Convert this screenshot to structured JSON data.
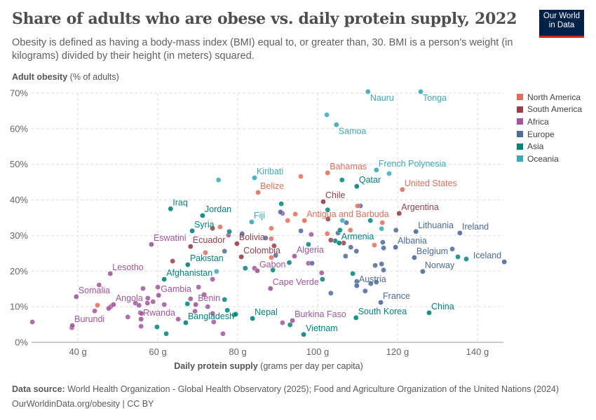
{
  "title": "Share of adults who are obese vs. daily protein supply, 2022",
  "subtitle": "Obesity is defined as having a body-mass index (BMI) equal to, or greater than, 30. BMI is a person's weight (in kilograms) divided by their height (in meters) squared.",
  "logo": {
    "line1": "Our World",
    "line2": "in Data",
    "bg": "#002147",
    "accent": "#ce261e"
  },
  "footer": {
    "source_label": "Data source:",
    "source": "World Health Organization - Global Health Observatory (2025); Food and Agriculture Organization of the United Nations (2024)",
    "url": "OurWorldinData.org/obesity | CC BY"
  },
  "chart_data": {
    "type": "scatter",
    "title": "Share of adults who are obese vs. daily protein supply, 2022",
    "xlabel": "Daily protein supply",
    "xlabel_unit": "(grams per day per capita)",
    "ylabel": "Adult obesity",
    "ylabel_unit": "(% of adults)",
    "xlim": [
      28.4,
      146.5
    ],
    "ylim": [
      0,
      70
    ],
    "xticks": [
      {
        "v": 40,
        "label": "40 g"
      },
      {
        "v": 60,
        "label": "60 g"
      },
      {
        "v": 80,
        "label": "80 g"
      },
      {
        "v": 100,
        "label": "100 g"
      },
      {
        "v": 120,
        "label": "120 g"
      },
      {
        "v": 140,
        "label": "140 g"
      }
    ],
    "yticks": [
      {
        "v": 0,
        "label": "0%"
      },
      {
        "v": 10,
        "label": "10%"
      },
      {
        "v": 20,
        "label": "20%"
      },
      {
        "v": 30,
        "label": "30%"
      },
      {
        "v": 40,
        "label": "40%"
      },
      {
        "v": 50,
        "label": "50%"
      },
      {
        "v": 60,
        "label": "60%"
      },
      {
        "v": 70,
        "label": "70%"
      }
    ],
    "grid": true,
    "legend_position": "right",
    "regions": [
      {
        "name": "North America",
        "color": "#e56e5a"
      },
      {
        "name": "South America",
        "color": "#9a3e4a"
      },
      {
        "name": "Africa",
        "color": "#a2559c"
      },
      {
        "name": "Europe",
        "color": "#4c6a9c"
      },
      {
        "name": "Asia",
        "color": "#00847e"
      },
      {
        "name": "Oceania",
        "color": "#38aabc"
      }
    ],
    "labeled_points": [
      {
        "name": "Nauru",
        "region": "Oceania",
        "x": 112.6,
        "y": 70.4
      },
      {
        "name": "Tonga",
        "region": "Oceania",
        "x": 125.8,
        "y": 70.4
      },
      {
        "name": "Samoa",
        "region": "Oceania",
        "x": 104.7,
        "y": 61.1
      },
      {
        "name": "Kiribati",
        "region": "Oceania",
        "x": 84.2,
        "y": 46.2
      },
      {
        "name": "French Polynesia",
        "region": "Oceania",
        "x": 114.7,
        "y": 48.4
      },
      {
        "name": "Bahamas",
        "region": "North America",
        "x": 102.5,
        "y": 47.6
      },
      {
        "name": "Qatar",
        "region": "Asia",
        "x": 109.8,
        "y": 43.8
      },
      {
        "name": "United States",
        "region": "North America",
        "x": 121.2,
        "y": 42.9
      },
      {
        "name": "Belize",
        "region": "North America",
        "x": 85.1,
        "y": 42.1
      },
      {
        "name": "Chile",
        "region": "South America",
        "x": 101.4,
        "y": 39.5
      },
      {
        "name": "Argentina",
        "region": "South America",
        "x": 120.4,
        "y": 36.2
      },
      {
        "name": "Antigua and Barbuda",
        "region": "North America",
        "x": 96.7,
        "y": 34.2
      },
      {
        "name": "Lithuania",
        "region": "Europe",
        "x": 124.6,
        "y": 31.1
      },
      {
        "name": "Ireland",
        "region": "Europe",
        "x": 135.6,
        "y": 30.7
      },
      {
        "name": "Iceland",
        "region": "Europe",
        "x": 146.7,
        "y": 22.6
      },
      {
        "name": "Albania",
        "region": "Europe",
        "x": 119.5,
        "y": 26.7
      },
      {
        "name": "Belgium",
        "region": "Europe",
        "x": 124.2,
        "y": 23.8
      },
      {
        "name": "Norway",
        "region": "Europe",
        "x": 126.3,
        "y": 19.9
      },
      {
        "name": "Austria",
        "region": "Europe",
        "x": 109.8,
        "y": 15.9
      },
      {
        "name": "France",
        "region": "Europe",
        "x": 115.8,
        "y": 11.2
      },
      {
        "name": "China",
        "region": "Asia",
        "x": 127.9,
        "y": 8.3
      },
      {
        "name": "South Korea",
        "region": "Asia",
        "x": 109.6,
        "y": 6.9
      },
      {
        "name": "Vietnam",
        "region": "Asia",
        "x": 96.5,
        "y": 2.2
      },
      {
        "name": "Armenia",
        "region": "Asia",
        "x": 105.4,
        "y": 27.9
      },
      {
        "name": "Algeria",
        "region": "Africa",
        "x": 94.2,
        "y": 24.2
      },
      {
        "name": "Gabon",
        "region": "Africa",
        "x": 84.9,
        "y": 20.1
      },
      {
        "name": "Cape Verde",
        "region": "Africa",
        "x": 88.2,
        "y": 15.1
      },
      {
        "name": "Burkina Faso",
        "region": "Africa",
        "x": 93.7,
        "y": 6.1
      },
      {
        "name": "Nepal",
        "region": "Asia",
        "x": 83.7,
        "y": 6.7
      },
      {
        "name": "Bangladesh",
        "region": "Asia",
        "x": 67.0,
        "y": 5.5
      },
      {
        "name": "Benin",
        "region": "Africa",
        "x": 69.5,
        "y": 10.6
      },
      {
        "name": "Rwanda",
        "region": "Africa",
        "x": 55.8,
        "y": 6.5
      },
      {
        "name": "Burundi",
        "region": "Africa",
        "x": 38.6,
        "y": 4.7
      },
      {
        "name": "Somalia",
        "region": "Africa",
        "x": 39.6,
        "y": 12.8
      },
      {
        "name": "Angola",
        "region": "Africa",
        "x": 48.9,
        "y": 10.6
      },
      {
        "name": "Gambia",
        "region": "Africa",
        "x": 60.2,
        "y": 13.2
      },
      {
        "name": "Lesotho",
        "region": "Africa",
        "x": 48.1,
        "y": 19.3
      },
      {
        "name": "Afghanistan",
        "region": "Asia",
        "x": 61.6,
        "y": 17.7
      },
      {
        "name": "Pakistan",
        "region": "Asia",
        "x": 67.5,
        "y": 21.8
      },
      {
        "name": "Eswatini",
        "region": "Africa",
        "x": 58.4,
        "y": 27.5
      },
      {
        "name": "Ecuador",
        "region": "South America",
        "x": 68.2,
        "y": 26.9
      },
      {
        "name": "Syria",
        "region": "Asia",
        "x": 68.6,
        "y": 31.3
      },
      {
        "name": "Jordan",
        "region": "Asia",
        "x": 71.2,
        "y": 35.6
      },
      {
        "name": "Iraq",
        "region": "Asia",
        "x": 63.2,
        "y": 37.5
      },
      {
        "name": "Fiji",
        "region": "Oceania",
        "x": 83.5,
        "y": 33.8
      },
      {
        "name": "Bolivia",
        "region": "South America",
        "x": 79.8,
        "y": 27.7
      },
      {
        "name": "Colombia",
        "region": "South America",
        "x": 80.9,
        "y": 24.0
      }
    ],
    "other_points": [
      {
        "region": "Africa",
        "x": 28.6,
        "y": 5.7
      },
      {
        "region": "Africa",
        "x": 38.5,
        "y": 4.1
      },
      {
        "region": "Africa",
        "x": 44.2,
        "y": 8.8
      },
      {
        "region": "Africa",
        "x": 45.3,
        "y": 16.1
      },
      {
        "region": "Africa",
        "x": 48.2,
        "y": 10.0
      },
      {
        "region": "Africa",
        "x": 47.7,
        "y": 9.5
      },
      {
        "region": "Africa",
        "x": 52.5,
        "y": 7.1
      },
      {
        "region": "Africa",
        "x": 54.4,
        "y": 11.0
      },
      {
        "region": "Africa",
        "x": 55.3,
        "y": 10.4
      },
      {
        "region": "Africa",
        "x": 55.6,
        "y": 8.3
      },
      {
        "region": "Africa",
        "x": 55.9,
        "y": 8.1
      },
      {
        "region": "Africa",
        "x": 55.8,
        "y": 4.5
      },
      {
        "region": "Africa",
        "x": 56.3,
        "y": 15.1
      },
      {
        "region": "Africa",
        "x": 57.4,
        "y": 11.0
      },
      {
        "region": "Africa",
        "x": 57.5,
        "y": 12.4
      },
      {
        "region": "Africa",
        "x": 58.8,
        "y": 11.4
      },
      {
        "region": "Africa",
        "x": 60.0,
        "y": 15.5
      },
      {
        "region": "Africa",
        "x": 61.6,
        "y": 10.6
      },
      {
        "region": "Africa",
        "x": 65.1,
        "y": 6.5
      },
      {
        "region": "Africa",
        "x": 68.2,
        "y": 12.2
      },
      {
        "region": "Africa",
        "x": 69.3,
        "y": 8.7
      },
      {
        "region": "Africa",
        "x": 70.2,
        "y": 15.5
      },
      {
        "region": "Africa",
        "x": 71.6,
        "y": 13.4
      },
      {
        "region": "Africa",
        "x": 72.5,
        "y": 10.0
      },
      {
        "region": "Africa",
        "x": 73.7,
        "y": 8.1
      },
      {
        "region": "Africa",
        "x": 73.7,
        "y": 17.7
      },
      {
        "region": "Africa",
        "x": 74.0,
        "y": 5.7
      },
      {
        "region": "Africa",
        "x": 76.3,
        "y": 2.4
      },
      {
        "region": "Africa",
        "x": 91.2,
        "y": 5.5
      },
      {
        "region": "Africa",
        "x": 84.2,
        "y": 20.8
      },
      {
        "region": "Africa",
        "x": 98.4,
        "y": 30.3
      },
      {
        "region": "Africa",
        "x": 97.7,
        "y": 22.2
      },
      {
        "region": "Africa",
        "x": 101.0,
        "y": 19.5
      },
      {
        "region": "Africa",
        "x": 91.2,
        "y": 36.2
      },
      {
        "region": "Africa",
        "x": 77.7,
        "y": 30.1
      },
      {
        "region": "Europe",
        "x": 76.7,
        "y": 25.6
      },
      {
        "region": "Europe",
        "x": 81.1,
        "y": 30.5
      },
      {
        "region": "Europe",
        "x": 87.0,
        "y": 29.3
      },
      {
        "region": "Europe",
        "x": 89.5,
        "y": 24.4
      },
      {
        "region": "Europe",
        "x": 90.7,
        "y": 36.6
      },
      {
        "region": "Europe",
        "x": 95.8,
        "y": 31.3
      },
      {
        "region": "Europe",
        "x": 98.6,
        "y": 22.2
      },
      {
        "region": "Europe",
        "x": 110.7,
        "y": 38.3
      },
      {
        "region": "Europe",
        "x": 107.2,
        "y": 33.6
      },
      {
        "region": "Europe",
        "x": 105.1,
        "y": 30.7
      },
      {
        "region": "Europe",
        "x": 108.3,
        "y": 26.7
      },
      {
        "region": "Europe",
        "x": 109.7,
        "y": 25.6
      },
      {
        "region": "Europe",
        "x": 109.8,
        "y": 17.1
      },
      {
        "region": "Europe",
        "x": 103.3,
        "y": 13.8
      },
      {
        "region": "Europe",
        "x": 107.0,
        "y": 24.2
      },
      {
        "region": "Europe",
        "x": 116.3,
        "y": 28.1
      },
      {
        "region": "Europe",
        "x": 116.5,
        "y": 26.5
      },
      {
        "region": "Europe",
        "x": 119.6,
        "y": 31.5
      },
      {
        "region": "Europe",
        "x": 114.4,
        "y": 21.6
      },
      {
        "region": "Europe",
        "x": 116.0,
        "y": 22.0
      },
      {
        "region": "Europe",
        "x": 116.5,
        "y": 20.3
      },
      {
        "region": "Europe",
        "x": 113.3,
        "y": 16.5
      },
      {
        "region": "Europe",
        "x": 114.7,
        "y": 16.9
      },
      {
        "region": "Europe",
        "x": 111.9,
        "y": 14.4
      },
      {
        "region": "Europe",
        "x": 133.7,
        "y": 26.2
      },
      {
        "region": "Asia",
        "x": 106.1,
        "y": 45.6
      },
      {
        "region": "Asia",
        "x": 135.1,
        "y": 24.0
      },
      {
        "region": "Asia",
        "x": 137.2,
        "y": 23.4
      },
      {
        "region": "Asia",
        "x": 108.8,
        "y": 19.3
      },
      {
        "region": "Asia",
        "x": 101.2,
        "y": 17.7
      },
      {
        "region": "Asia",
        "x": 97.7,
        "y": 27.5
      },
      {
        "region": "Asia",
        "x": 105.6,
        "y": 31.5
      },
      {
        "region": "Asia",
        "x": 104.4,
        "y": 28.5
      },
      {
        "region": "Asia",
        "x": 113.2,
        "y": 34.2
      },
      {
        "region": "Asia",
        "x": 90.9,
        "y": 38.9
      },
      {
        "region": "Asia",
        "x": 102.5,
        "y": 37.2
      },
      {
        "region": "Asia",
        "x": 92.9,
        "y": 22.4
      },
      {
        "region": "Asia",
        "x": 81.9,
        "y": 20.8
      },
      {
        "region": "Asia",
        "x": 88.8,
        "y": 20.3
      },
      {
        "region": "Asia",
        "x": 77.9,
        "y": 31.1
      },
      {
        "region": "Asia",
        "x": 76.7,
        "y": 12.0
      },
      {
        "region": "Asia",
        "x": 77.4,
        "y": 9.0
      },
      {
        "region": "Asia",
        "x": 79.1,
        "y": 7.7
      },
      {
        "region": "Asia",
        "x": 79.5,
        "y": 7.9
      },
      {
        "region": "Asia",
        "x": 93.1,
        "y": 4.9
      },
      {
        "region": "Asia",
        "x": 67.4,
        "y": 10.8
      },
      {
        "region": "Asia",
        "x": 62.1,
        "y": 2.4
      },
      {
        "region": "Asia",
        "x": 59.8,
        "y": 4.3
      },
      {
        "region": "North America",
        "x": 95.8,
        "y": 46.6
      },
      {
        "region": "North America",
        "x": 75.6,
        "y": 32.4
      },
      {
        "region": "North America",
        "x": 71.9,
        "y": 25.2
      },
      {
        "region": "North America",
        "x": 88.4,
        "y": 32.0
      },
      {
        "region": "North America",
        "x": 88.4,
        "y": 29.1
      },
      {
        "region": "North America",
        "x": 88.4,
        "y": 23.8
      },
      {
        "region": "North America",
        "x": 92.5,
        "y": 34.2
      },
      {
        "region": "North America",
        "x": 94.4,
        "y": 36.0
      },
      {
        "region": "North America",
        "x": 102.4,
        "y": 30.5
      },
      {
        "region": "North America",
        "x": 108.2,
        "y": 31.5
      },
      {
        "region": "North America",
        "x": 110.0,
        "y": 38.3
      },
      {
        "region": "North America",
        "x": 44.9,
        "y": 10.4
      },
      {
        "region": "North America",
        "x": 114.2,
        "y": 27.3
      },
      {
        "region": "North America",
        "x": 116.2,
        "y": 33.6
      },
      {
        "region": "South America",
        "x": 63.7,
        "y": 22.8
      },
      {
        "region": "South America",
        "x": 73.7,
        "y": 32.0
      },
      {
        "region": "South America",
        "x": 89.1,
        "y": 27.1
      },
      {
        "region": "South America",
        "x": 103.3,
        "y": 28.7
      },
      {
        "region": "South America",
        "x": 106.5,
        "y": 27.9
      },
      {
        "region": "South America",
        "x": 102.6,
        "y": 34.6
      },
      {
        "region": "Oceania",
        "x": 102.3,
        "y": 63.9
      },
      {
        "region": "Oceania",
        "x": 117.9,
        "y": 47.4
      },
      {
        "region": "Oceania",
        "x": 74.7,
        "y": 19.9
      },
      {
        "region": "Oceania",
        "x": 75.2,
        "y": 45.6
      },
      {
        "region": "Oceania",
        "x": 106.2,
        "y": 34.2
      },
      {
        "region": "Oceania",
        "x": 116.0,
        "y": 31.9
      }
    ]
  }
}
